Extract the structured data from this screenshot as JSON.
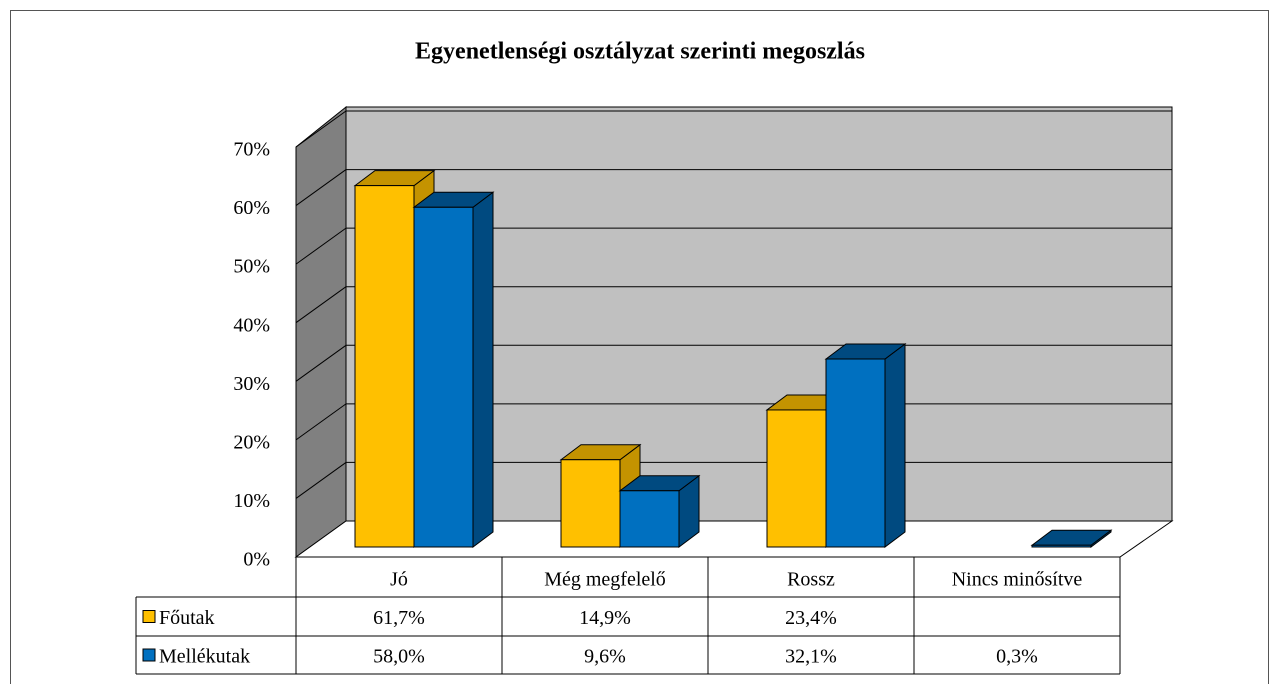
{
  "chart_data": {
    "type": "bar3d",
    "title": "Egyenetlenségi osztályzat szerinti megoszlás",
    "categories": [
      "Jó",
      "Még megfelelő",
      "Rossz",
      "Nincs minősítve"
    ],
    "series": [
      {
        "name": "Főutak",
        "color": "#ffc000",
        "side": "#c49300",
        "values": [
          61.7,
          14.9,
          23.4,
          null
        ],
        "value_labels": [
          "61,7%",
          "14,9%",
          "23,4%",
          null
        ]
      },
      {
        "name": "Mellékutak",
        "color": "#0070c0",
        "side": "#004a80",
        "values": [
          58.0,
          9.6,
          32.1,
          0.3
        ],
        "value_labels": [
          "58,0%",
          "9,6%",
          "32,1%",
          "0,3%"
        ]
      }
    ],
    "ylim": [
      0,
      70
    ],
    "yticks": [
      {
        "value": 0,
        "label": "0%"
      },
      {
        "value": 10,
        "label": "10%"
      },
      {
        "value": 20,
        "label": "20%"
      },
      {
        "value": 30,
        "label": "30%"
      },
      {
        "value": 40,
        "label": "40%"
      },
      {
        "value": 50,
        "label": "50%"
      },
      {
        "value": 60,
        "label": "60%"
      },
      {
        "value": 70,
        "label": "70%"
      }
    ],
    "grid": true
  }
}
